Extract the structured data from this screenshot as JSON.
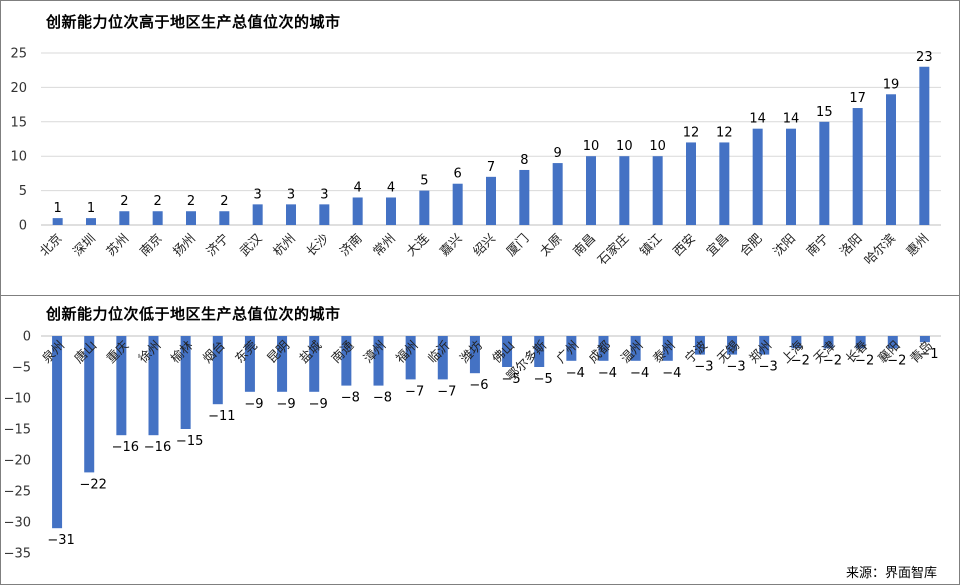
{
  "source": "来源：界面智库",
  "colors": {
    "bar": "#4472c4",
    "grid": "#d9d9d9"
  },
  "chart_data": [
    {
      "type": "bar",
      "title": "创新能力位次高于地区生产总值位次的城市",
      "xlabel": "",
      "ylabel": "",
      "ylim": [
        0,
        25
      ],
      "yticks": [
        0,
        5,
        10,
        15,
        20,
        25
      ],
      "grid": true,
      "categories": [
        "北京",
        "深圳",
        "苏州",
        "南京",
        "扬州",
        "济宁",
        "武汉",
        "杭州",
        "长沙",
        "济南",
        "常州",
        "大连",
        "嘉兴",
        "绍兴",
        "厦门",
        "太原",
        "南昌",
        "石家庄",
        "镇江",
        "西安",
        "宜昌",
        "合肥",
        "沈阳",
        "南宁",
        "洛阳",
        "哈尔滨",
        "惠州"
      ],
      "values": [
        1,
        1,
        2,
        2,
        2,
        2,
        3,
        3,
        3,
        4,
        4,
        5,
        6,
        7,
        8,
        9,
        10,
        10,
        10,
        12,
        12,
        14,
        14,
        15,
        17,
        19,
        23
      ]
    },
    {
      "type": "bar",
      "title": "创新能力位次低于地区生产总值位次的城市",
      "xlabel": "",
      "ylabel": "",
      "ylim": [
        -35,
        0
      ],
      "yticks": [
        0,
        -5,
        -10,
        -15,
        -20,
        -25,
        -30,
        -35
      ],
      "grid": false,
      "categories": [
        "泉州",
        "唐山",
        "重庆",
        "徐州",
        "榆林",
        "烟台",
        "东莞",
        "昆明",
        "盐城",
        "南通",
        "漳州",
        "福州",
        "临沂",
        "潍坊",
        "佛山",
        "鄂尔多斯",
        "广州",
        "成都",
        "温州",
        "泰州",
        "宁波",
        "无锡",
        "郑州",
        "上海",
        "天津",
        "长春",
        "襄阳",
        "青岛"
      ],
      "values": [
        -31,
        -22,
        -16,
        -16,
        -15,
        -11,
        -9,
        -9,
        -9,
        -8,
        -8,
        -7,
        -7,
        -6,
        -5,
        -5,
        -4,
        -4,
        -4,
        -4,
        -3,
        -3,
        -3,
        -2,
        -2,
        -2,
        -2,
        -1
      ]
    }
  ]
}
